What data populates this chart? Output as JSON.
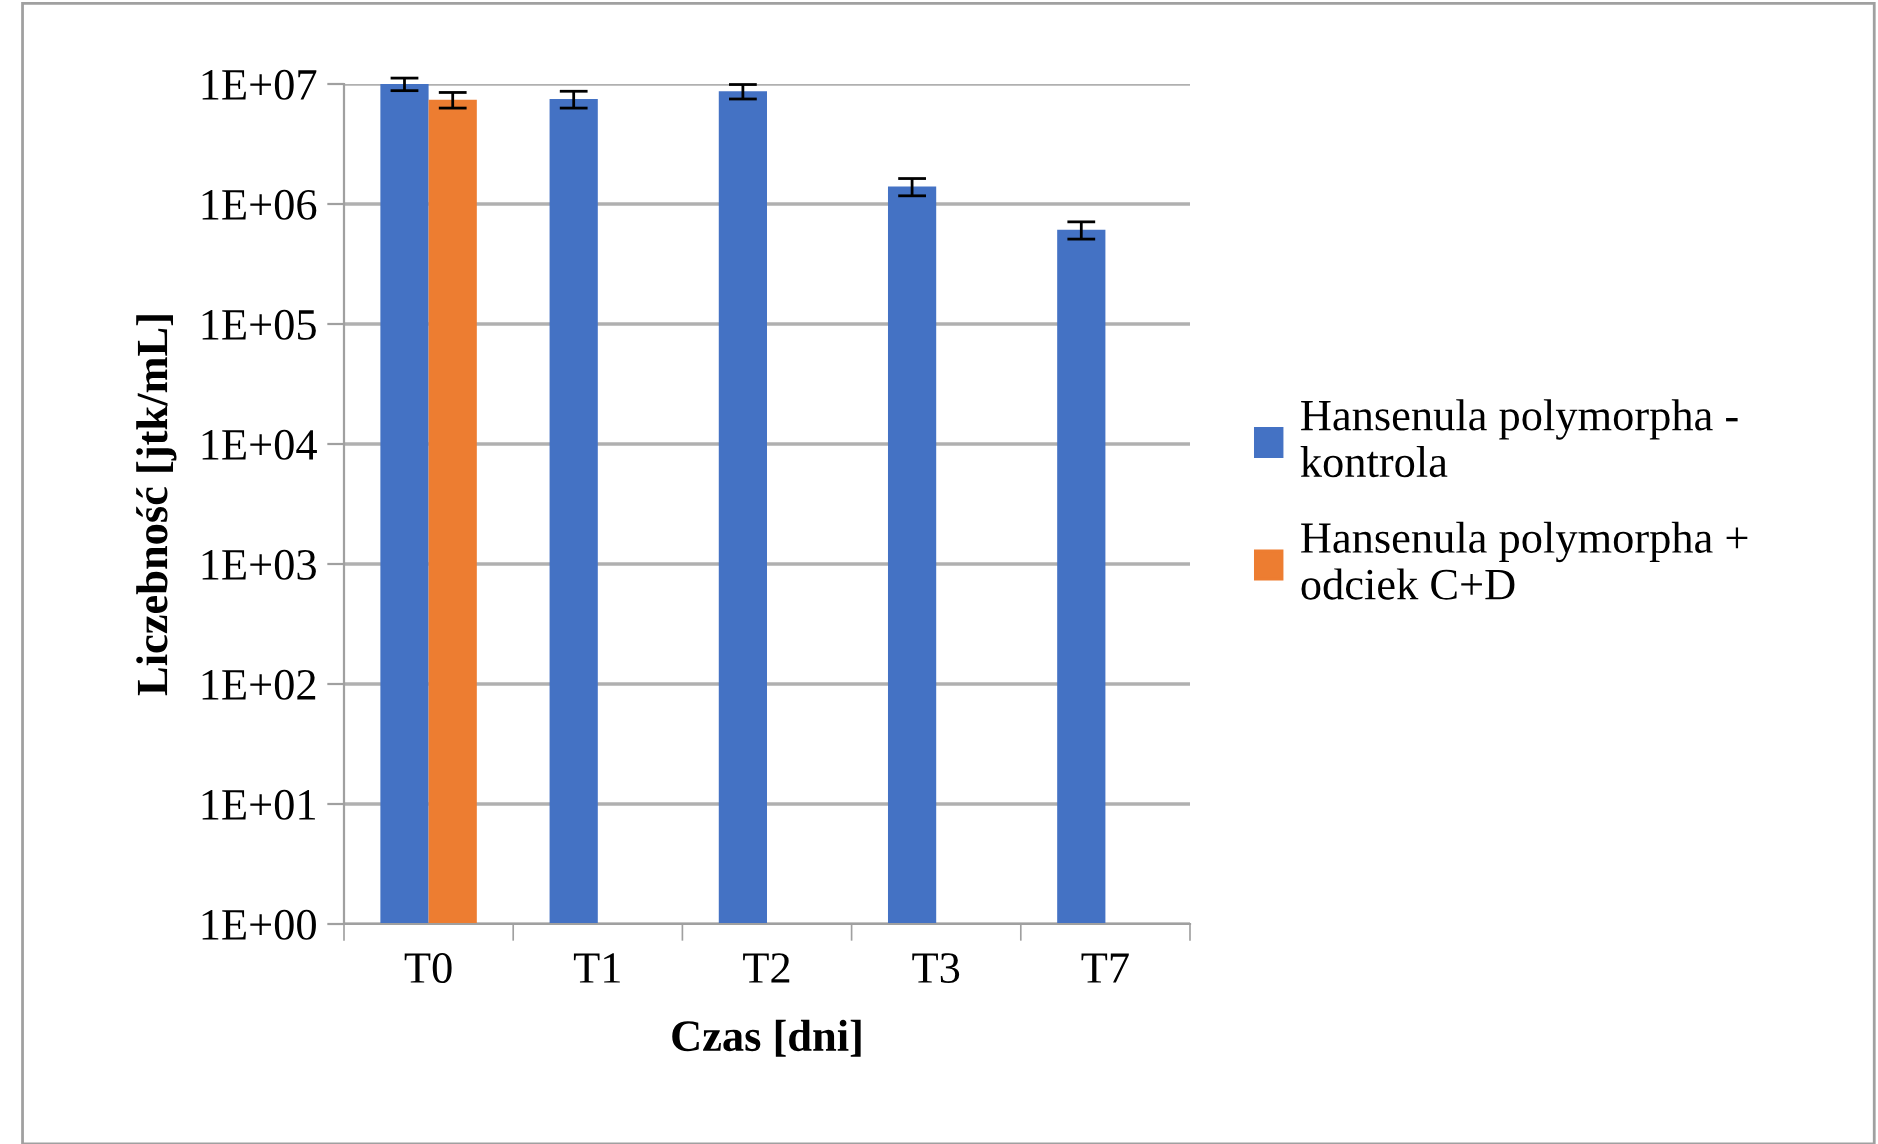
{
  "chart_data": {
    "type": "bar",
    "xlabel": "Czas [dni]",
    "ylabel": "Liczebność [jtk/mL]",
    "categories": [
      "T0",
      "T1",
      "T2",
      "T3",
      "T7"
    ],
    "series": [
      {
        "name": "Hansenula polymorpha - kontrola",
        "color": "#4472c4",
        "values": [
          10000000,
          7500000,
          8700000,
          1400000,
          610000
        ],
        "errors": [
          1200000,
          1200000,
          1200000,
          230000,
          100000
        ]
      },
      {
        "name": "Hansenula polymorpha + odciek C+D",
        "color": "#ed7d31",
        "values": [
          7400000,
          null,
          null,
          null,
          null
        ],
        "errors": [
          1100000,
          null,
          null,
          null,
          null
        ]
      }
    ],
    "log": "y",
    "ylim": [
      1,
      10000000
    ],
    "yticks": [
      {
        "value": 1,
        "label": "1E+00"
      },
      {
        "value": 10,
        "label": "1E+01"
      },
      {
        "value": 100,
        "label": "1E+02"
      },
      {
        "value": 1000,
        "label": "1E+03"
      },
      {
        "value": 10000,
        "label": "1E+04"
      },
      {
        "value": 100000,
        "label": "1E+05"
      },
      {
        "value": 1000000,
        "label": "1E+06"
      },
      {
        "value": 10000000,
        "label": "1E+07"
      }
    ],
    "grid": "y",
    "legend": "right"
  }
}
